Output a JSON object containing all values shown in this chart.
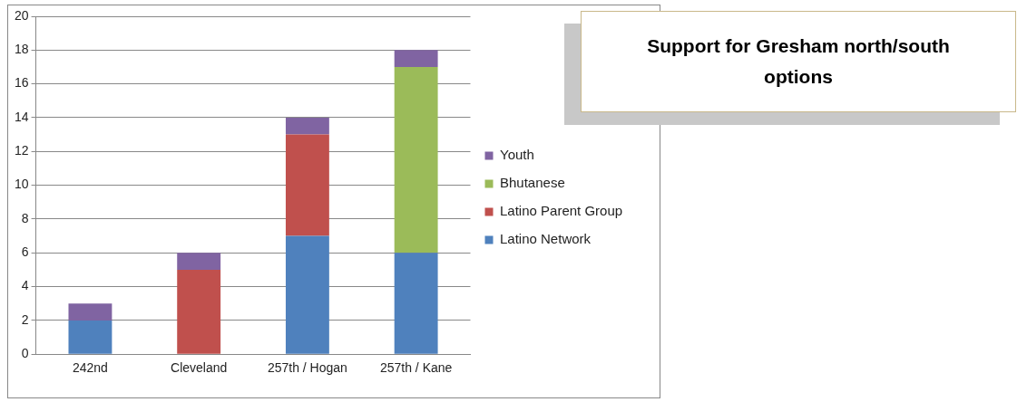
{
  "chart_data": {
    "type": "bar",
    "title": "Support for Gresham north/south options",
    "categories": [
      "242nd",
      "Cleveland",
      "257th / Hogan",
      "257th / Kane"
    ],
    "stacked": true,
    "series": [
      {
        "name": "Latino Network",
        "color": "#4f81bd",
        "values": [
          2,
          0,
          7,
          6
        ]
      },
      {
        "name": "Latino Parent Group",
        "color": "#c0504d",
        "values": [
          0,
          5,
          6,
          0
        ]
      },
      {
        "name": "Bhutanese",
        "color": "#9bbb59",
        "values": [
          0,
          0,
          0,
          11
        ]
      },
      {
        "name": "Youth",
        "color": "#8064a2",
        "values": [
          1,
          1,
          1,
          1
        ]
      }
    ],
    "ylim": [
      0,
      20
    ],
    "yticks": [
      0,
      2,
      4,
      6,
      8,
      10,
      12,
      14,
      16,
      18,
      20
    ],
    "grid": "y",
    "legend": "right"
  }
}
